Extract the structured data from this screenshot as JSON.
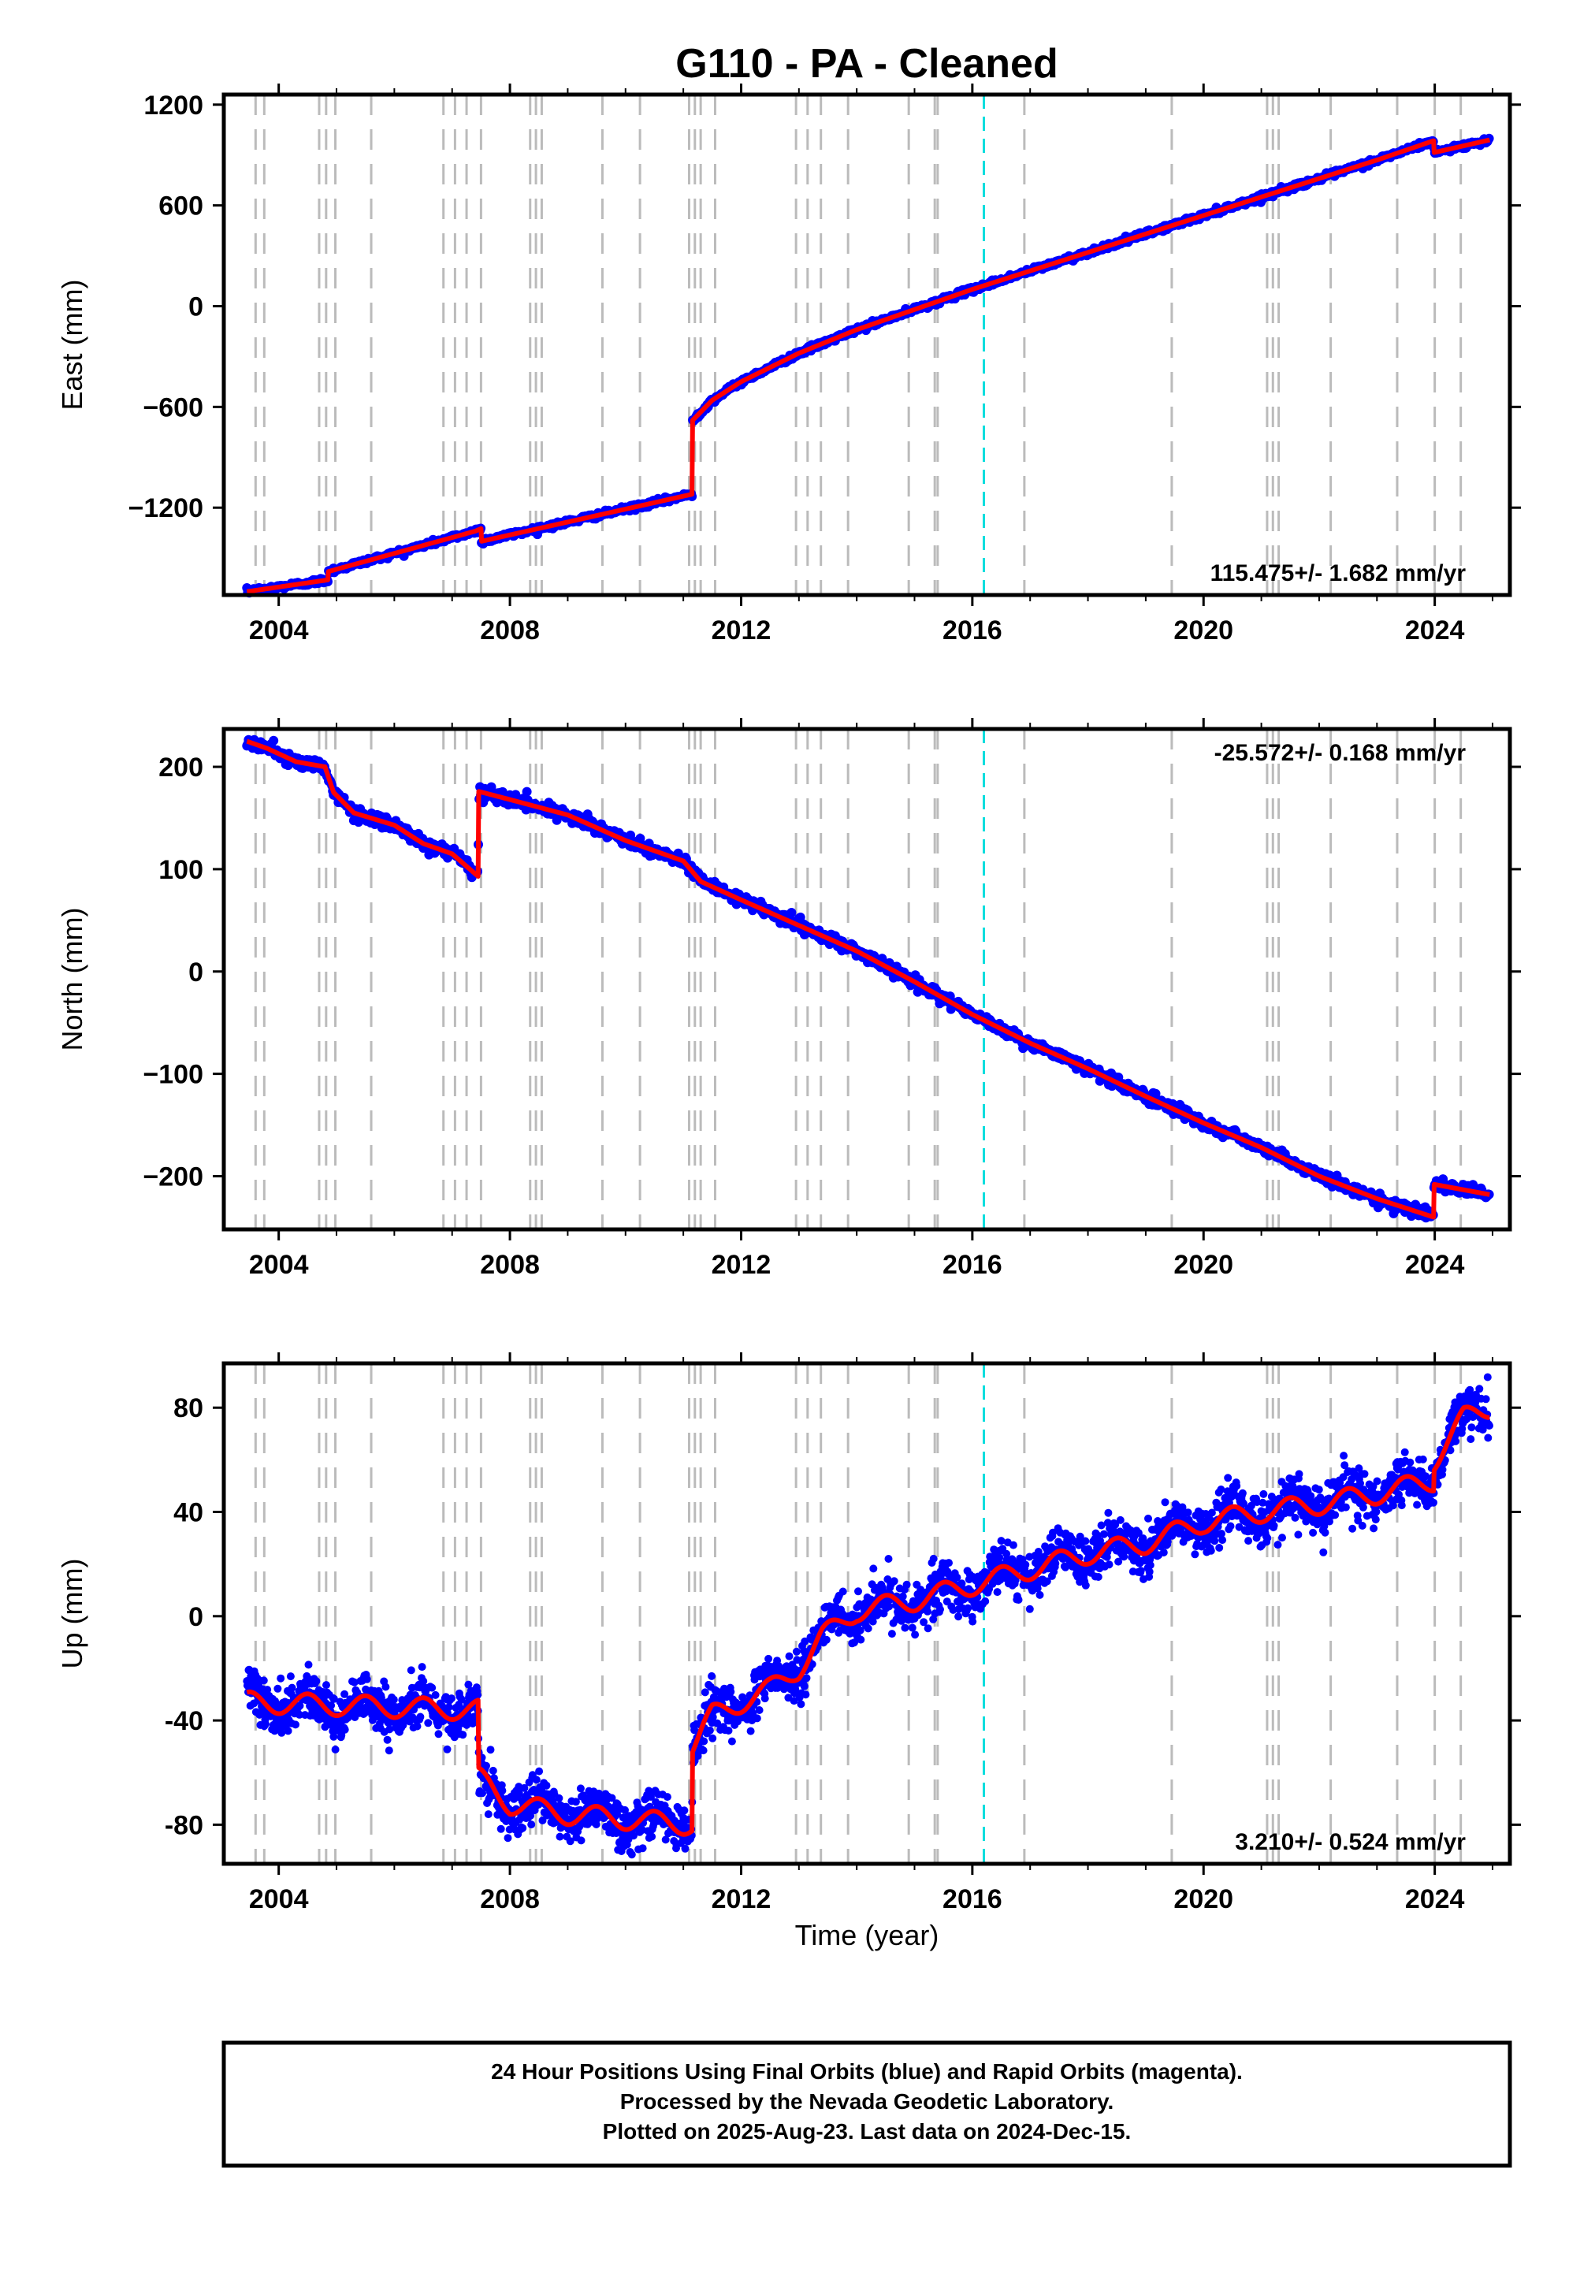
{
  "title": "G110  - PA - Cleaned",
  "xlabel": "Time (year)",
  "caption": {
    "line1": "24 Hour Positions Using Final Orbits (blue) and Rapid Orbits (magenta).",
    "line2": "Processed by the Nevada Geodetic Laboratory.",
    "line3": "Plotted on 2025-Aug-23. Last data on 2024-Dec-15."
  },
  "colors": {
    "final": "#0000ff",
    "model": "#ff0000",
    "rapid": "#ff00ff",
    "equipment": "#bbbbbb",
    "earthquake": "#00dddd"
  },
  "chart_data": {
    "type": "scatter",
    "x_ticks": [
      2004,
      2008,
      2012,
      2016,
      2020,
      2024
    ],
    "xlim": [
      2003.05,
      2025.3
    ],
    "equipment_change_lines": [
      2003.6,
      2003.75,
      2004.7,
      2004.82,
      2004.98,
      2005.6,
      2006.85,
      2007.05,
      2007.25,
      2007.5,
      2008.35,
      2008.45,
      2008.55,
      2009.6,
      2010.25,
      2011.1,
      2011.2,
      2011.3,
      2011.55,
      2012.95,
      2013.15,
      2013.38,
      2013.85,
      2014.9,
      2015.35,
      2015.4,
      2016.9,
      2019.45,
      2021.1,
      2021.2,
      2021.3,
      2022.2,
      2023.35,
      2024.0,
      2024.45
    ],
    "earthquake_lines": [
      2016.2
    ],
    "panels": [
      {
        "ylabel": "East (mm)",
        "ylim": [
          -1720,
          1260
        ],
        "y_ticks": [
          1200,
          600,
          0,
          -600,
          -1200
        ],
        "y_tick_labels": [
          "1200",
          "600",
          "0",
          "−600",
          "−1200"
        ],
        "rate_label": "115.475+/- 1.682 mm/yr",
        "rate_position": "bottom-right",
        "model": [
          [
            2003.45,
            -1700
          ],
          [
            2004.85,
            -1630
          ],
          [
            2004.86,
            -1580
          ],
          [
            2007.4,
            -1340
          ],
          [
            2007.5,
            -1325
          ],
          [
            2007.51,
            -1400
          ],
          [
            2011.15,
            -1120
          ],
          [
            2011.16,
            -680
          ],
          [
            2011.5,
            -560
          ],
          [
            2012,
            -450
          ],
          [
            2013,
            -280
          ],
          [
            2014,
            -140
          ],
          [
            2015,
            -20
          ],
          [
            2016,
            100
          ],
          [
            2017,
            210
          ],
          [
            2018,
            320
          ],
          [
            2019,
            430
          ],
          [
            2020,
            540
          ],
          [
            2021,
            650
          ],
          [
            2022,
            760
          ],
          [
            2023,
            870
          ],
          [
            2023.98,
            985
          ],
          [
            2023.99,
            915
          ],
          [
            2024.95,
            990
          ]
        ],
        "noise": 8
      },
      {
        "ylabel": "North (mm)",
        "ylim": [
          -252,
          237
        ],
        "y_ticks": [
          200,
          100,
          0,
          -100,
          -200
        ],
        "y_tick_labels": [
          "200",
          "100",
          "0",
          "−100",
          "−200"
        ],
        "rate_label": "-25.572+/- 0.168 mm/yr",
        "rate_position": "top-right",
        "model": [
          [
            2003.45,
            225
          ],
          [
            2003.8,
            218
          ],
          [
            2004.3,
            205
          ],
          [
            2004.8,
            200
          ],
          [
            2004.95,
            175
          ],
          [
            2005.3,
            155
          ],
          [
            2006,
            143
          ],
          [
            2006.5,
            125
          ],
          [
            2007,
            115
          ],
          [
            2007.45,
            93
          ],
          [
            2007.46,
            176
          ],
          [
            2008,
            168
          ],
          [
            2009,
            153
          ],
          [
            2010,
            128
          ],
          [
            2011,
            108
          ],
          [
            2011.3,
            88
          ],
          [
            2012,
            70
          ],
          [
            2013,
            45
          ],
          [
            2014,
            20
          ],
          [
            2015,
            -10
          ],
          [
            2016,
            -42
          ],
          [
            2017,
            -70
          ],
          [
            2018,
            -95
          ],
          [
            2019,
            -122
          ],
          [
            2020,
            -148
          ],
          [
            2021,
            -172
          ],
          [
            2022,
            -200
          ],
          [
            2023,
            -222
          ],
          [
            2023.98,
            -240
          ],
          [
            2023.99,
            -208
          ],
          [
            2024.95,
            -218
          ]
        ],
        "noise": 3
      },
      {
        "ylabel": "Up (mm)",
        "ylim": [
          -95,
          97
        ],
        "y_ticks": [
          80,
          40,
          0,
          -40,
          -80
        ],
        "y_tick_labels": [
          "80",
          "40",
          "0",
          "-40",
          "-80"
        ],
        "rate_label": "3.210+/- 0.524 mm/yr",
        "rate_position": "bottom-right",
        "model": [
          [
            2003.45,
            -33
          ],
          [
            2007.45,
            -36
          ],
          [
            2007.46,
            -62
          ],
          [
            2008,
            -72
          ],
          [
            2009,
            -76
          ],
          [
            2011.15,
            -80
          ],
          [
            2011.16,
            -50
          ],
          [
            2011.5,
            -38
          ],
          [
            2012.5,
            -28
          ],
          [
            2013,
            -20
          ],
          [
            2013.4,
            -8
          ],
          [
            2014,
            2
          ],
          [
            2015,
            6
          ],
          [
            2016,
            12
          ],
          [
            2017,
            18
          ],
          [
            2018,
            24
          ],
          [
            2019,
            28
          ],
          [
            2020,
            36
          ],
          [
            2021,
            40
          ],
          [
            2022,
            43
          ],
          [
            2023,
            47
          ],
          [
            2023.98,
            52
          ],
          [
            2023.99,
            60
          ],
          [
            2024.5,
            76
          ],
          [
            2024.95,
            80
          ]
        ],
        "seasonal": 4,
        "noise": 4.5
      }
    ]
  }
}
